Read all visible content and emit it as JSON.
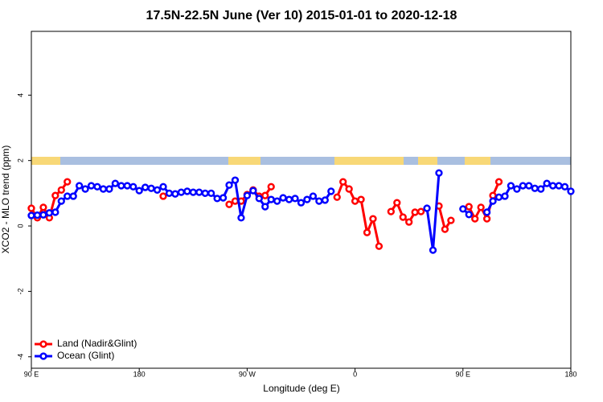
{
  "chart_data": {
    "type": "line",
    "title": "17.5N-22.5N June (Ver 10)   2015-01-01 to 2020-12-18",
    "xlabel": "Longitude (deg E)",
    "ylabel": "XCO2 - MLO trend (ppm)",
    "x": [
      90,
      95,
      100,
      105,
      110,
      115,
      120,
      125,
      130,
      135,
      140,
      145,
      150,
      155,
      160,
      165,
      170,
      175,
      180,
      185,
      190,
      195,
      200,
      205,
      210,
      215,
      220,
      225,
      230,
      235,
      240,
      245,
      250,
      255,
      260,
      265,
      270,
      275,
      280,
      285,
      290,
      295,
      300,
      305,
      310,
      315,
      320,
      325,
      330,
      335,
      340,
      345,
      350,
      355,
      360,
      365,
      370,
      375,
      380,
      385,
      390,
      395,
      400,
      405,
      410,
      415,
      420,
      425,
      430,
      435,
      440,
      445,
      450,
      455,
      460,
      465,
      470,
      475,
      480,
      485,
      490,
      495,
      500,
      505,
      510,
      515,
      520,
      525,
      530,
      535,
      540
    ],
    "xlim": [
      90,
      540
    ],
    "xticks": [
      {
        "value": 90,
        "label": "90 E"
      },
      180,
      {
        "value": 270,
        "label": "90 W"
      },
      {
        "value": 360,
        "label": "0"
      },
      {
        "value": 450,
        "label": "90 E"
      },
      {
        "value": 540,
        "label": "180"
      }
    ],
    "ylim": [
      -4.35,
      5.95
    ],
    "yticks": [
      -4,
      -2,
      0,
      2,
      4
    ],
    "legend": "bottomleft",
    "series": [
      {
        "name": "Land (Nadir&Glint)",
        "color": "#ff0000",
        "values": [
          0.54,
          0.25,
          0.57,
          0.25,
          0.93,
          1.1,
          1.35,
          null,
          null,
          null,
          null,
          null,
          null,
          null,
          null,
          null,
          null,
          null,
          null,
          null,
          null,
          null,
          0.91,
          null,
          null,
          null,
          null,
          null,
          null,
          null,
          null,
          null,
          null,
          0.66,
          0.76,
          0.76,
          0.96,
          1.1,
          0.91,
          0.93,
          1.2,
          null,
          null,
          null,
          null,
          null,
          null,
          null,
          null,
          null,
          null,
          0.88,
          1.35,
          1.13,
          0.76,
          0.81,
          -0.2,
          0.22,
          -0.62,
          null,
          0.44,
          0.71,
          0.27,
          0.12,
          0.42,
          0.44,
          null,
          null,
          0.61,
          -0.1,
          0.17,
          null,
          null,
          0.59,
          0.22,
          0.57,
          0.22,
          0.93,
          1.35,
          null,
          null,
          null,
          null,
          null,
          null,
          null,
          null,
          null,
          null,
          null,
          null
        ]
      },
      {
        "name": "Ocean (Glint)",
        "color": "#0000ff",
        "values": [
          0.32,
          0.33,
          0.34,
          0.4,
          0.42,
          0.76,
          0.91,
          0.91,
          1.23,
          1.13,
          1.23,
          1.2,
          1.13,
          1.13,
          1.3,
          1.23,
          1.23,
          1.2,
          1.08,
          1.18,
          1.15,
          1.1,
          1.2,
          1.0,
          0.98,
          1.03,
          1.06,
          1.03,
          1.03,
          1.0,
          1.0,
          0.84,
          0.86,
          1.25,
          1.4,
          0.25,
          0.93,
          1.08,
          0.84,
          0.59,
          0.81,
          0.76,
          0.86,
          0.81,
          0.84,
          0.71,
          0.81,
          0.91,
          0.76,
          0.79,
          1.06,
          null,
          null,
          null,
          null,
          null,
          null,
          null,
          null,
          null,
          null,
          null,
          null,
          null,
          null,
          null,
          0.54,
          -0.74,
          1.62,
          null,
          null,
          null,
          0.52,
          0.35,
          null,
          null,
          0.42,
          0.76,
          0.88,
          0.91,
          1.23,
          1.13,
          1.23,
          1.23,
          1.15,
          1.13,
          1.3,
          1.23,
          1.23,
          1.2,
          1.06
        ]
      }
    ]
  }
}
